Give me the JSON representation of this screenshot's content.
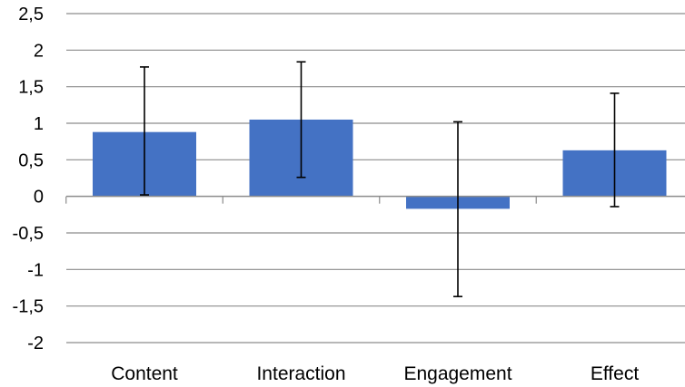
{
  "chart_data": {
    "type": "bar",
    "title": "",
    "xlabel": "",
    "ylabel": "",
    "categories": [
      "Content",
      "Interaction",
      "Engagement",
      "Effect"
    ],
    "values": [
      0.88,
      1.05,
      -0.17,
      0.63
    ],
    "error_bars": [
      {
        "low": 0.02,
        "high": 1.77
      },
      {
        "low": 0.26,
        "high": 1.84
      },
      {
        "low": -1.37,
        "high": 1.02
      },
      {
        "low": -0.14,
        "high": 1.41
      }
    ],
    "ylim": [
      -2,
      2.5
    ],
    "yticks": [
      "2,5",
      "2",
      "1,5",
      "1",
      "0,5",
      "0",
      "-0,5",
      "-1",
      "-1,5",
      "-2"
    ],
    "ytick_values": [
      2.5,
      2,
      1.5,
      1,
      0.5,
      0,
      -0.5,
      -1,
      -1.5,
      -2
    ],
    "grid": true,
    "legend": "none",
    "colors": {
      "bar": "#4472C4",
      "grid": "#8C8C8C",
      "error_bar": "#000000",
      "axis": "#8C8C8C"
    }
  }
}
